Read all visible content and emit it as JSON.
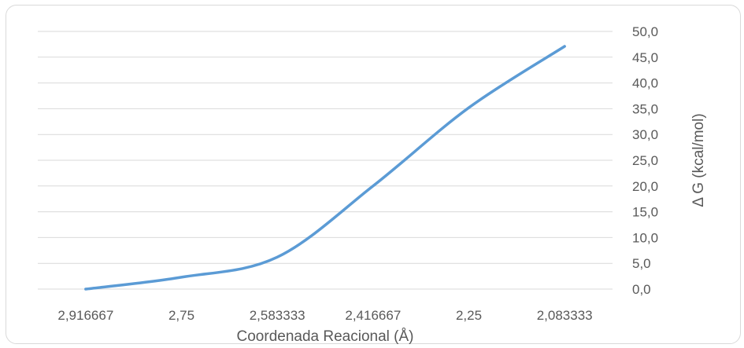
{
  "chart_data": {
    "type": "line",
    "x_labels": [
      "2,916667",
      "2,75",
      "2,583333",
      "2,416667",
      "2,25",
      "2,083333"
    ],
    "x": [
      2.916667,
      2.75,
      2.583333,
      2.416667,
      2.25,
      2.083333
    ],
    "y": [
      0.0,
      2.3,
      6.2,
      20.0,
      35.2,
      47.1
    ],
    "y_tick_labels": [
      "0,0",
      "5,0",
      "10,0",
      "15,0",
      "20,0",
      "25,0",
      "30,0",
      "35,0",
      "40,0",
      "45,0",
      "50,0"
    ],
    "ylim": [
      0,
      50
    ],
    "xlabel": "Coordenada Reacional (Å)",
    "ylabel": "Δ G (kcal/mol)",
    "title": "",
    "grid": true,
    "y_axis_side": "right",
    "legend": "none",
    "colors": {
      "series": "#5b9bd5",
      "grid": "#d9d9d9",
      "text": "#595959"
    }
  }
}
